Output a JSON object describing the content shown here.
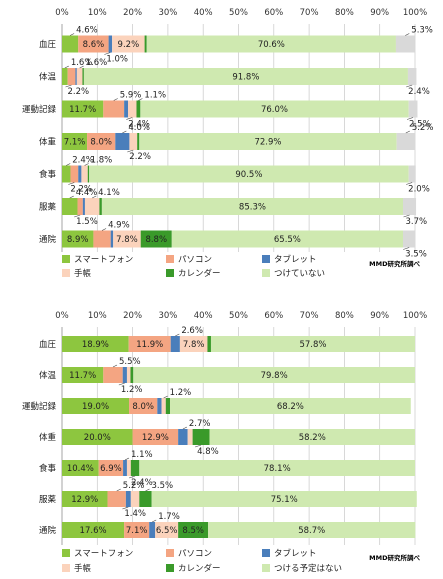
{
  "chart_data": [
    {
      "type": "bar",
      "orientation": "horizontal",
      "stacked": true,
      "x_ticks": [
        "0%",
        "10%",
        "20%",
        "30%",
        "40%",
        "50%",
        "60%",
        "70%",
        "80%",
        "90%",
        "100%"
      ],
      "xlim": [
        0,
        100
      ],
      "categories": [
        "血圧",
        "体温",
        "運動記録",
        "体重",
        "食事",
        "服薬",
        "通院"
      ],
      "series": [
        {
          "name": "スマートフォン",
          "color": "#8dc63f",
          "values": [
            4.6,
            1.6,
            11.7,
            7.1,
            2.4,
            4.4,
            8.9
          ]
        },
        {
          "name": "パソコン",
          "color": "#f4a582",
          "values": [
            8.6,
            2.2,
            5.9,
            8.0,
            2.2,
            1.5,
            4.9
          ]
        },
        {
          "name": "タブレット",
          "color": "#4a7ebb",
          "values": [
            1.0,
            0.4,
            1.1,
            4.0,
            0.9,
            0.6,
            0.7
          ]
        },
        {
          "name": "手帳",
          "color": "#fbd3bc",
          "values": [
            9.2,
            1.6,
            2.4,
            2.2,
            1.8,
            4.1,
            7.8
          ]
        },
        {
          "name": "カレンダー",
          "color": "#3a9a2a",
          "values": [
            0.6,
            0.4,
            1.1,
            0.6,
            0.4,
            0.7,
            8.8
          ]
        },
        {
          "name": "つけていない",
          "color": "#cfe9b0",
          "values": [
            70.6,
            91.8,
            76.0,
            72.9,
            90.5,
            85.3,
            65.5
          ]
        },
        {
          "name": "",
          "color": "#d9d9d9",
          "values": [
            5.3,
            2.4,
            2.5,
            5.2,
            2.0,
            3.7,
            3.5
          ]
        }
      ],
      "labels": [
        [
          "4.6%",
          "8.6%",
          "1.0%",
          "9.2%",
          "",
          "70.6%",
          "5.3%"
        ],
        [
          "1.6%",
          "2.2%",
          "",
          "1.6%",
          "",
          "91.8%",
          "2.4%"
        ],
        [
          "11.7%",
          "5.9%",
          "",
          "2.4%",
          "1.1%",
          "76.0%",
          "2.5%"
        ],
        [
          "7.1%",
          "8.0%",
          "4.0%",
          "2.2%",
          "",
          "72.9%",
          "5.2%"
        ],
        [
          "2.4%",
          "2.2%",
          "",
          "1.8%",
          "",
          "90.5%",
          "2.0%"
        ],
        [
          "4.4%",
          "1.5%",
          "",
          "4.1%",
          "",
          "85.3%",
          "3.7%"
        ],
        [
          "8.9%",
          "4.9%",
          "",
          "7.8%",
          "8.8%",
          "65.5%",
          "3.5%"
        ]
      ],
      "legend": [
        "スマートフォン",
        "パソコン",
        "タブレット",
        "手帳",
        "カレンダー",
        "つけていない"
      ],
      "source": "MMD研究所調べ"
    },
    {
      "type": "bar",
      "orientation": "horizontal",
      "stacked": true,
      "x_ticks": [
        "0%",
        "10%",
        "20%",
        "30%",
        "40%",
        "50%",
        "60%",
        "70%",
        "80%",
        "90%",
        "100%"
      ],
      "xlim": [
        0,
        100
      ],
      "categories": [
        "血圧",
        "体温",
        "運動記録",
        "体重",
        "食事",
        "服薬",
        "通院"
      ],
      "series": [
        {
          "name": "スマートフォン",
          "color": "#8dc63f",
          "values": [
            18.9,
            11.7,
            19.0,
            20.0,
            10.4,
            12.9,
            17.6
          ]
        },
        {
          "name": "パソコン",
          "color": "#f4a582",
          "values": [
            11.9,
            5.5,
            8.0,
            12.9,
            6.9,
            5.2,
            7.1
          ]
        },
        {
          "name": "タブレット",
          "color": "#4a7ebb",
          "values": [
            2.6,
            1.2,
            1.2,
            2.7,
            1.1,
            1.4,
            1.7
          ]
        },
        {
          "name": "手帳",
          "color": "#fbd3bc",
          "values": [
            7.8,
            1.0,
            1.2,
            1.4,
            1.1,
            2.4,
            6.5
          ]
        },
        {
          "name": "カレンダー",
          "color": "#3a9a2a",
          "values": [
            1.0,
            0.8,
            1.2,
            4.8,
            2.4,
            3.5,
            8.5
          ]
        },
        {
          "name": "つける予定はない",
          "color": "#cfe9b0",
          "values": [
            57.8,
            79.8,
            68.2,
            58.2,
            78.1,
            75.1,
            58.7
          ]
        }
      ],
      "labels": [
        [
          "18.9%",
          "11.9%",
          "2.6%",
          "7.8%",
          "",
          "57.8%"
        ],
        [
          "11.7%",
          "5.5%",
          "1.2%",
          "",
          "",
          "79.8%"
        ],
        [
          "19.0%",
          "8.0%",
          "",
          "1.2%",
          "",
          "68.2%"
        ],
        [
          "20.0%",
          "12.9%",
          "2.7%",
          "",
          "4.8%",
          "58.2%"
        ],
        [
          "10.4%",
          "6.9%",
          "1.1%",
          "",
          "2.4%",
          "78.1%"
        ],
        [
          "12.9%",
          "5.2%",
          "1.4%",
          "",
          "3.5%",
          "75.1%"
        ],
        [
          "17.6%",
          "7.1%",
          "1.7%",
          "6.5%",
          "8.5%",
          "58.7%"
        ]
      ],
      "legend": [
        "スマートフォン",
        "パソコン",
        "タブレット",
        "手帳",
        "カレンダー",
        "つける予定はない"
      ],
      "source": "MMD研究所調べ"
    }
  ]
}
